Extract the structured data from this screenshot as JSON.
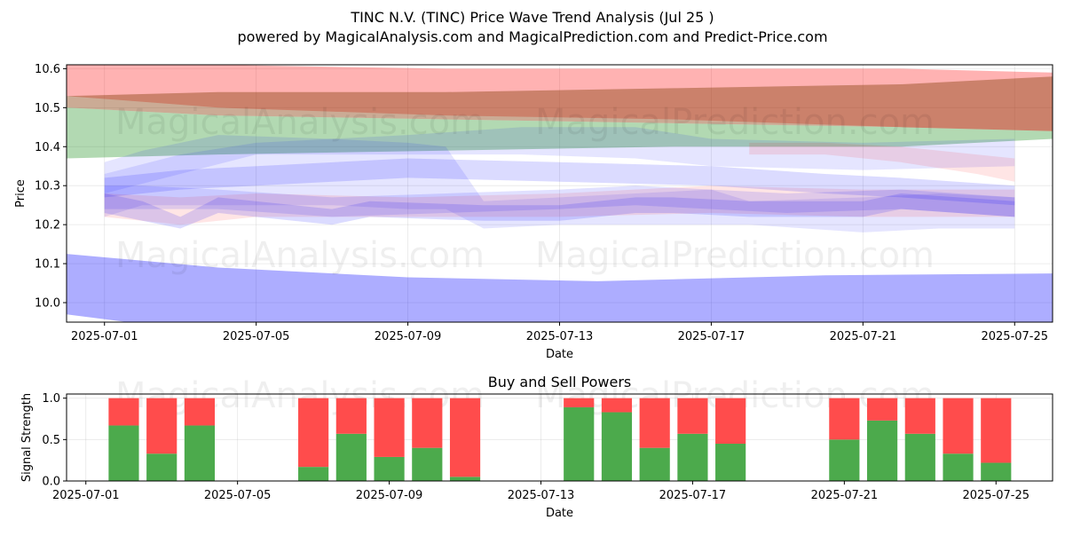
{
  "header": {
    "title": "TINC N.V. (TINC) Price Wave Trend Analysis (Jul 25 )",
    "subtitle": "powered by MagicalAnalysis.com and MagicalPrediction.com and Predict-Price.com"
  },
  "watermarks": [
    "MagicalAnalysis.com",
    "MagicalPrediction.com"
  ],
  "chart_data": [
    {
      "type": "area",
      "xlabel": "Date",
      "ylabel": "Price",
      "xlim": [
        "2025-06-30",
        "2025-07-26"
      ],
      "ylim": [
        9.95,
        10.61
      ],
      "yticks": [
        10.0,
        10.1,
        10.2,
        10.3,
        10.4,
        10.5,
        10.6
      ],
      "xticks": [
        "2025-07-01",
        "2025-07-05",
        "2025-07-09",
        "2025-07-13",
        "2025-07-17",
        "2025-07-21",
        "2025-07-25"
      ],
      "grid": true,
      "bands": [
        {
          "color": "#ff0000",
          "opacity": 0.3,
          "x": [
            "2025-06-30",
            "2025-07-04",
            "2025-07-10",
            "2025-07-16",
            "2025-07-22",
            "2025-07-26"
          ],
          "upper": [
            10.62,
            10.61,
            10.6,
            10.6,
            10.6,
            10.59
          ],
          "lower": [
            10.53,
            10.5,
            10.48,
            10.47,
            10.45,
            10.44
          ]
        },
        {
          "color": "#008000",
          "opacity": 0.3,
          "x": [
            "2025-06-30",
            "2025-07-04",
            "2025-07-10",
            "2025-07-16",
            "2025-07-22",
            "2025-07-26"
          ],
          "upper": [
            10.5,
            10.48,
            10.47,
            10.46,
            10.45,
            10.44
          ],
          "lower": [
            10.37,
            10.38,
            10.39,
            10.4,
            10.4,
            10.42
          ]
        },
        {
          "color": "#8b4513",
          "opacity": 0.45,
          "x": [
            "2025-06-30",
            "2025-07-04",
            "2025-07-10",
            "2025-07-16",
            "2025-07-22",
            "2025-07-26"
          ],
          "upper": [
            10.53,
            10.54,
            10.54,
            10.55,
            10.56,
            10.58
          ],
          "lower": [
            10.5,
            10.48,
            10.47,
            10.46,
            10.45,
            10.44
          ]
        },
        {
          "color": "#0000ff",
          "opacity": 0.32,
          "x": [
            "2025-06-30",
            "2025-07-04",
            "2025-07-09",
            "2025-07-14",
            "2025-07-20",
            "2025-07-26"
          ],
          "upper": [
            10.125,
            10.09,
            10.065,
            10.055,
            10.07,
            10.075
          ],
          "lower": [
            9.97,
            9.92,
            9.9,
            9.9,
            9.92,
            9.92
          ]
        },
        {
          "color": "#0000ff",
          "opacity": 0.1,
          "x": [
            "2025-07-01",
            "2025-07-02",
            "2025-07-04",
            "2025-07-07",
            "2025-07-09",
            "2025-07-10",
            "2025-07-11",
            "2025-07-13",
            "2025-07-15",
            "2025-07-17",
            "2025-07-18",
            "2025-07-21",
            "2025-07-23",
            "2025-07-25"
          ],
          "upper": [
            10.36,
            10.39,
            10.43,
            10.42,
            10.41,
            10.4,
            10.26,
            10.27,
            10.28,
            10.29,
            10.26,
            10.27,
            10.28,
            10.27
          ],
          "lower": [
            10.22,
            10.25,
            10.25,
            10.25,
            10.24,
            10.24,
            10.19,
            10.2,
            10.2,
            10.2,
            10.2,
            10.18,
            10.19,
            10.19
          ]
        },
        {
          "color": "#0000ff",
          "opacity": 0.1,
          "x": [
            "2025-07-01",
            "2025-07-03",
            "2025-07-05",
            "2025-07-09",
            "2025-07-12",
            "2025-07-15",
            "2025-07-17",
            "2025-07-21",
            "2025-07-25"
          ],
          "upper": [
            10.33,
            10.38,
            10.41,
            10.43,
            10.45,
            10.45,
            10.42,
            10.41,
            10.42
          ],
          "lower": [
            10.28,
            10.33,
            10.38,
            10.38,
            10.38,
            10.37,
            10.35,
            10.34,
            10.35
          ]
        },
        {
          "color": "#ff0000",
          "opacity": 0.1,
          "x": [
            "2025-07-01",
            "2025-07-03",
            "2025-07-05",
            "2025-07-09",
            "2025-07-13",
            "2025-07-17",
            "2025-07-21",
            "2025-07-23",
            "2025-07-25"
          ],
          "upper": [
            10.28,
            10.27,
            10.28,
            10.27,
            10.28,
            10.3,
            10.29,
            10.29,
            10.29
          ],
          "lower": [
            10.22,
            10.2,
            10.22,
            10.22,
            10.22,
            10.23,
            10.22,
            10.22,
            10.22
          ]
        },
        {
          "color": "#ff0000",
          "opacity": 0.1,
          "x": [
            "2025-07-18",
            "2025-07-20",
            "2025-07-22",
            "2025-07-24",
            "2025-07-25"
          ],
          "upper": [
            10.41,
            10.41,
            10.4,
            10.38,
            10.37
          ],
          "lower": [
            10.38,
            10.38,
            10.36,
            10.33,
            10.31
          ]
        },
        {
          "color": "#0000ff",
          "opacity": 0.14,
          "x": [
            "2025-07-01",
            "2025-07-02",
            "2025-07-03",
            "2025-07-04",
            "2025-07-07",
            "2025-07-08",
            "2025-07-11",
            "2025-07-13",
            "2025-07-15",
            "2025-07-16",
            "2025-07-18",
            "2025-07-21",
            "2025-07-22",
            "2025-07-25"
          ],
          "upper": [
            10.28,
            10.26,
            10.22,
            10.27,
            10.24,
            10.26,
            10.25,
            10.25,
            10.27,
            10.27,
            10.26,
            10.26,
            10.28,
            10.26
          ],
          "lower": [
            10.23,
            10.21,
            10.19,
            10.23,
            10.2,
            10.22,
            10.21,
            10.21,
            10.23,
            10.23,
            10.22,
            10.22,
            10.24,
            10.22
          ]
        },
        {
          "color": "#0000ff",
          "opacity": 0.14,
          "x": [
            "2025-07-01",
            "2025-07-03",
            "2025-07-05",
            "2025-07-09",
            "2025-07-13",
            "2025-07-17",
            "2025-07-20",
            "2025-07-22",
            "2025-07-25"
          ],
          "upper": [
            10.32,
            10.34,
            10.35,
            10.37,
            10.36,
            10.35,
            10.33,
            10.32,
            10.3
          ],
          "lower": [
            10.27,
            10.29,
            10.3,
            10.32,
            10.31,
            10.3,
            10.28,
            10.27,
            10.25
          ]
        },
        {
          "color": "#0000ff",
          "opacity": 0.12,
          "x": [
            "2025-07-01",
            "2025-07-02",
            "2025-07-04",
            "2025-07-07",
            "2025-07-10",
            "2025-07-13",
            "2025-07-15",
            "2025-07-17",
            "2025-07-19",
            "2025-07-22",
            "2025-07-25"
          ],
          "upper": [
            10.3,
            10.3,
            10.29,
            10.27,
            10.28,
            10.29,
            10.3,
            10.29,
            10.28,
            10.29,
            10.27
          ],
          "lower": [
            10.24,
            10.24,
            10.24,
            10.22,
            10.23,
            10.24,
            10.25,
            10.24,
            10.23,
            10.24,
            10.22
          ]
        }
      ]
    },
    {
      "type": "bar",
      "title": "Buy and Sell Powers",
      "xlabel": "Date",
      "ylabel": "Signal Strength",
      "ylim": [
        0,
        1.05
      ],
      "yticks": [
        0.0,
        0.5,
        1.0
      ],
      "xticks": [
        "2025-07-01",
        "2025-07-05",
        "2025-07-09",
        "2025-07-13",
        "2025-07-17",
        "2025-07-21",
        "2025-07-25"
      ],
      "grid": true,
      "categories": [
        "2025-07-02",
        "2025-07-03",
        "2025-07-04",
        "2025-07-07",
        "2025-07-08",
        "2025-07-09",
        "2025-07-10",
        "2025-07-11",
        "2025-07-14",
        "2025-07-15",
        "2025-07-16",
        "2025-07-17",
        "2025-07-18",
        "2025-07-21",
        "2025-07-22",
        "2025-07-23",
        "2025-07-24",
        "2025-07-25"
      ],
      "series": [
        {
          "color": "#4caa4c",
          "values": [
            0.67,
            0.33,
            0.67,
            0.17,
            0.57,
            0.29,
            0.4,
            0.05,
            0.89,
            0.83,
            0.4,
            0.57,
            0.45,
            0.5,
            0.73,
            0.57,
            0.33,
            0.22
          ]
        },
        {
          "color": "#ff4c4c",
          "values": [
            0.33,
            0.67,
            0.33,
            0.83,
            0.43,
            0.71,
            0.6,
            0.95,
            0.11,
            0.17,
            0.6,
            0.43,
            0.55,
            0.5,
            0.27,
            0.43,
            0.67,
            0.78
          ]
        }
      ]
    }
  ]
}
